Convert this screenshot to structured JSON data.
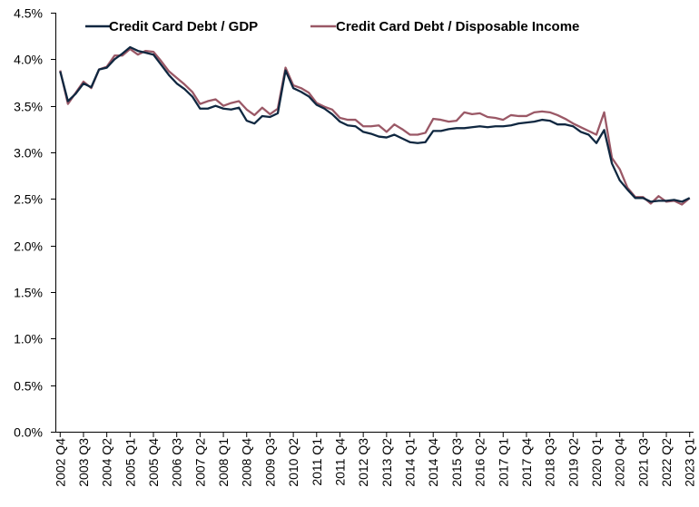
{
  "chart_data": {
    "type": "line",
    "title": "",
    "xlabel": "",
    "ylabel": "",
    "ylim": [
      0,
      4.5
    ],
    "y_ticks": [
      "0.0%",
      "0.5%",
      "1.0%",
      "1.5%",
      "2.0%",
      "2.5%",
      "3.0%",
      "3.5%",
      "4.0%",
      "4.5%"
    ],
    "x_tick_labels": [
      "2002 Q4",
      "2003 Q3",
      "2004 Q2",
      "2005 Q1",
      "2005 Q4",
      "2006 Q3",
      "2007 Q2",
      "2008 Q1",
      "2008 Q4",
      "2009 Q3",
      "2010 Q2",
      "2011 Q1",
      "2011 Q4",
      "2012 Q3",
      "2013 Q2",
      "2014 Q1",
      "2014 Q4",
      "2015 Q3",
      "2016 Q2",
      "2017 Q1",
      "2017 Q4",
      "2018 Q3",
      "2019 Q2",
      "2020 Q1",
      "2020 Q4",
      "2021 Q3",
      "2022 Q2",
      "2023 Q1"
    ],
    "grid": false,
    "legend_position": "top",
    "x": [
      "2002 Q4",
      "2003 Q1",
      "2003 Q2",
      "2003 Q3",
      "2003 Q4",
      "2004 Q1",
      "2004 Q2",
      "2004 Q3",
      "2004 Q4",
      "2005 Q1",
      "2005 Q2",
      "2005 Q3",
      "2005 Q4",
      "2006 Q1",
      "2006 Q2",
      "2006 Q3",
      "2006 Q4",
      "2007 Q1",
      "2007 Q2",
      "2007 Q3",
      "2007 Q4",
      "2008 Q1",
      "2008 Q2",
      "2008 Q3",
      "2008 Q4",
      "2009 Q1",
      "2009 Q2",
      "2009 Q3",
      "2009 Q4",
      "2010 Q1",
      "2010 Q2",
      "2010 Q3",
      "2010 Q4",
      "2011 Q1",
      "2011 Q2",
      "2011 Q3",
      "2011 Q4",
      "2012 Q1",
      "2012 Q2",
      "2012 Q3",
      "2012 Q4",
      "2013 Q1",
      "2013 Q2",
      "2013 Q3",
      "2013 Q4",
      "2014 Q1",
      "2014 Q2",
      "2014 Q3",
      "2014 Q4",
      "2015 Q1",
      "2015 Q2",
      "2015 Q3",
      "2015 Q4",
      "2016 Q1",
      "2016 Q2",
      "2016 Q3",
      "2016 Q4",
      "2017 Q1",
      "2017 Q2",
      "2017 Q3",
      "2017 Q4",
      "2018 Q1",
      "2018 Q2",
      "2018 Q3",
      "2018 Q4",
      "2019 Q1",
      "2019 Q2",
      "2019 Q3",
      "2019 Q4",
      "2020 Q1",
      "2020 Q2",
      "2020 Q3",
      "2020 Q4",
      "2021 Q1",
      "2021 Q2",
      "2021 Q3",
      "2021 Q4",
      "2022 Q1",
      "2022 Q2",
      "2022 Q3",
      "2022 Q4",
      "2023 Q1"
    ],
    "series": [
      {
        "name": "Credit Card Debt / GDP",
        "color": "#0f2740",
        "values": [
          3.87,
          3.55,
          3.63,
          3.74,
          3.7,
          3.89,
          3.91,
          4.0,
          4.06,
          4.13,
          4.09,
          4.07,
          4.05,
          3.94,
          3.83,
          3.74,
          3.68,
          3.6,
          3.47,
          3.47,
          3.5,
          3.47,
          3.46,
          3.48,
          3.34,
          3.31,
          3.39,
          3.38,
          3.42,
          3.88,
          3.69,
          3.65,
          3.6,
          3.51,
          3.47,
          3.41,
          3.33,
          3.29,
          3.28,
          3.22,
          3.2,
          3.17,
          3.16,
          3.19,
          3.15,
          3.11,
          3.1,
          3.11,
          3.23,
          3.23,
          3.25,
          3.26,
          3.26,
          3.27,
          3.28,
          3.27,
          3.28,
          3.28,
          3.29,
          3.31,
          3.32,
          3.33,
          3.35,
          3.34,
          3.3,
          3.3,
          3.28,
          3.22,
          3.19,
          3.1,
          3.24,
          2.88,
          2.7,
          2.6,
          2.51,
          2.51,
          2.47,
          2.48,
          2.48,
          2.49,
          2.47,
          2.51
        ]
      },
      {
        "name": "Credit Card Debt / Disposable Income",
        "color": "#9a5866",
        "values": [
          3.88,
          3.52,
          3.64,
          3.76,
          3.69,
          3.89,
          3.92,
          4.04,
          4.04,
          4.11,
          4.05,
          4.09,
          4.08,
          3.98,
          3.87,
          3.8,
          3.73,
          3.65,
          3.52,
          3.55,
          3.57,
          3.5,
          3.53,
          3.55,
          3.46,
          3.4,
          3.48,
          3.41,
          3.47,
          3.91,
          3.72,
          3.69,
          3.64,
          3.53,
          3.49,
          3.46,
          3.37,
          3.35,
          3.35,
          3.28,
          3.28,
          3.29,
          3.22,
          3.3,
          3.25,
          3.19,
          3.19,
          3.21,
          3.36,
          3.35,
          3.33,
          3.34,
          3.43,
          3.41,
          3.42,
          3.38,
          3.37,
          3.35,
          3.4,
          3.39,
          3.39,
          3.43,
          3.44,
          3.43,
          3.4,
          3.36,
          3.31,
          3.27,
          3.23,
          3.19,
          3.43,
          2.94,
          2.82,
          2.62,
          2.52,
          2.52,
          2.45,
          2.53,
          2.47,
          2.48,
          2.44,
          2.51
        ]
      }
    ]
  }
}
